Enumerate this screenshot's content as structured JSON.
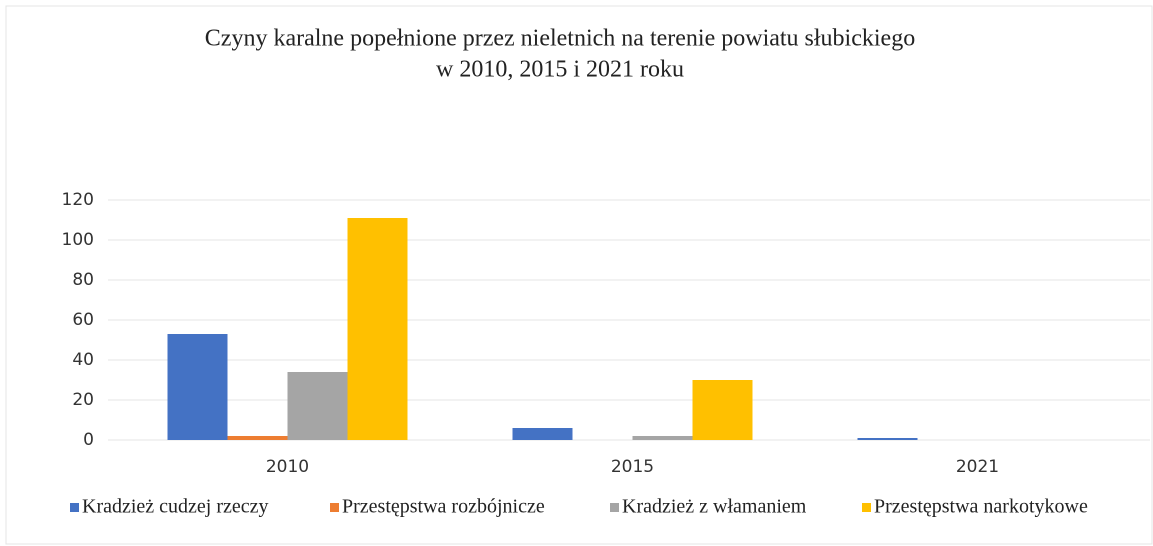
{
  "chart_data": {
    "type": "bar",
    "title": [
      "Czyny karalne popełnione przez nieletnich na terenie powiatu słubickiego",
      "w 2010, 2015 i 2021 roku"
    ],
    "categories": [
      "2010",
      "2015",
      "2021"
    ],
    "series": [
      {
        "name": "Kradzież cudzej rzeczy",
        "color": "#4472c4",
        "values": [
          53,
          6,
          1
        ]
      },
      {
        "name": "Przestępstwa rozbójnicze",
        "color": "#ed7d31",
        "values": [
          2,
          0,
          0
        ]
      },
      {
        "name": "Kradzież z włamaniem",
        "color": "#a5a5a5",
        "values": [
          34,
          2,
          0
        ]
      },
      {
        "name": "Przestępstwa narkotykowe",
        "color": "#ffc000",
        "values": [
          111,
          30,
          0
        ]
      }
    ],
    "ylim": [
      0,
      120
    ],
    "yticks": [
      0,
      20,
      40,
      60,
      80,
      100,
      120
    ],
    "grid": true,
    "legend": "bottom"
  }
}
